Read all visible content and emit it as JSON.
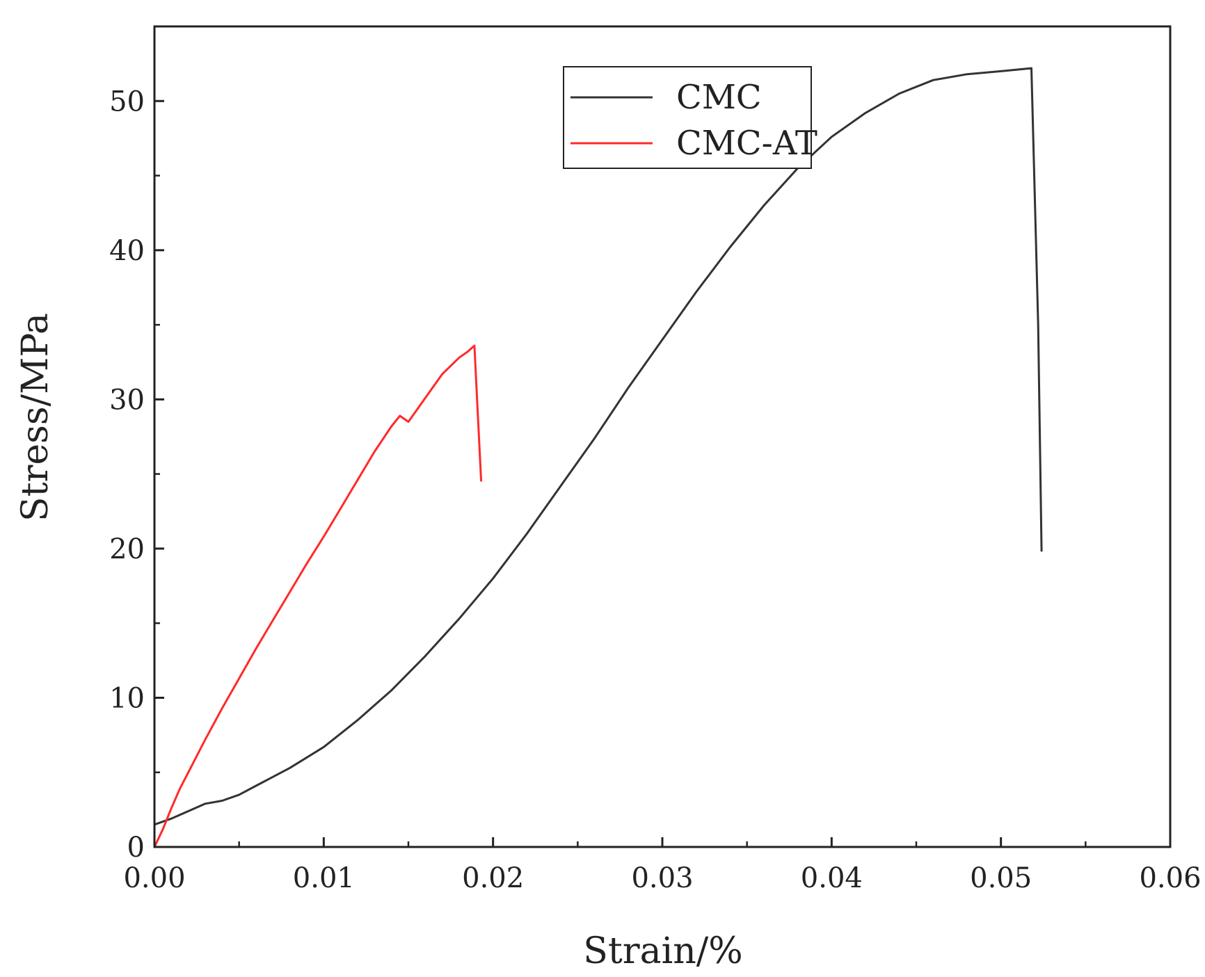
{
  "chart_data": {
    "type": "line",
    "title": "",
    "xlabel": "Strain/%",
    "ylabel": "Stress/MPa",
    "xlim": [
      0,
      0.06
    ],
    "ylim": [
      0,
      55
    ],
    "x_ticks": [
      0,
      0.01,
      0.02,
      0.03,
      0.04,
      0.05,
      0.06
    ],
    "x_tick_labels": [
      "0.00",
      "0.01",
      "0.02",
      "0.03",
      "0.04",
      "0.05",
      "0.06"
    ],
    "y_ticks": [
      0,
      10,
      20,
      30,
      40,
      50
    ],
    "y_tick_labels": [
      "0",
      "10",
      "20",
      "30",
      "40",
      "50"
    ],
    "grid": false,
    "legend_position": "top-center",
    "series": [
      {
        "name": "CMC",
        "color": "#333333",
        "x": [
          0,
          0.001,
          0.002,
          0.003,
          0.004,
          0.005,
          0.006,
          0.007,
          0.008,
          0.009,
          0.01,
          0.012,
          0.014,
          0.016,
          0.018,
          0.02,
          0.022,
          0.024,
          0.026,
          0.028,
          0.03,
          0.032,
          0.034,
          0.036,
          0.038,
          0.04,
          0.042,
          0.044,
          0.046,
          0.048,
          0.05,
          0.0518,
          0.0522,
          0.0524
        ],
        "y": [
          1.5,
          1.9,
          2.4,
          2.9,
          3.1,
          3.5,
          4.1,
          4.7,
          5.3,
          6.0,
          6.7,
          8.5,
          10.5,
          12.8,
          15.3,
          18.0,
          21.0,
          24.2,
          27.4,
          30.8,
          34.0,
          37.2,
          40.2,
          43.0,
          45.5,
          47.6,
          49.2,
          50.5,
          51.4,
          51.8,
          52.0,
          52.2,
          35.0,
          19.8
        ]
      },
      {
        "name": "CMC-AT",
        "color": "#ff2a2a",
        "x": [
          0,
          0.0005,
          0.001,
          0.0015,
          0.002,
          0.003,
          0.004,
          0.005,
          0.006,
          0.007,
          0.008,
          0.009,
          0.01,
          0.011,
          0.012,
          0.013,
          0.014,
          0.0145,
          0.015,
          0.0155,
          0.016,
          0.017,
          0.018,
          0.0185,
          0.0189,
          0.0191,
          0.0193
        ],
        "y": [
          0,
          1.2,
          2.6,
          3.9,
          5.0,
          7.2,
          9.3,
          11.3,
          13.3,
          15.2,
          17.1,
          19.0,
          20.8,
          22.7,
          24.6,
          26.5,
          28.2,
          28.9,
          28.5,
          29.3,
          30.1,
          31.7,
          32.8,
          33.2,
          33.6,
          29.0,
          24.5
        ]
      }
    ]
  }
}
